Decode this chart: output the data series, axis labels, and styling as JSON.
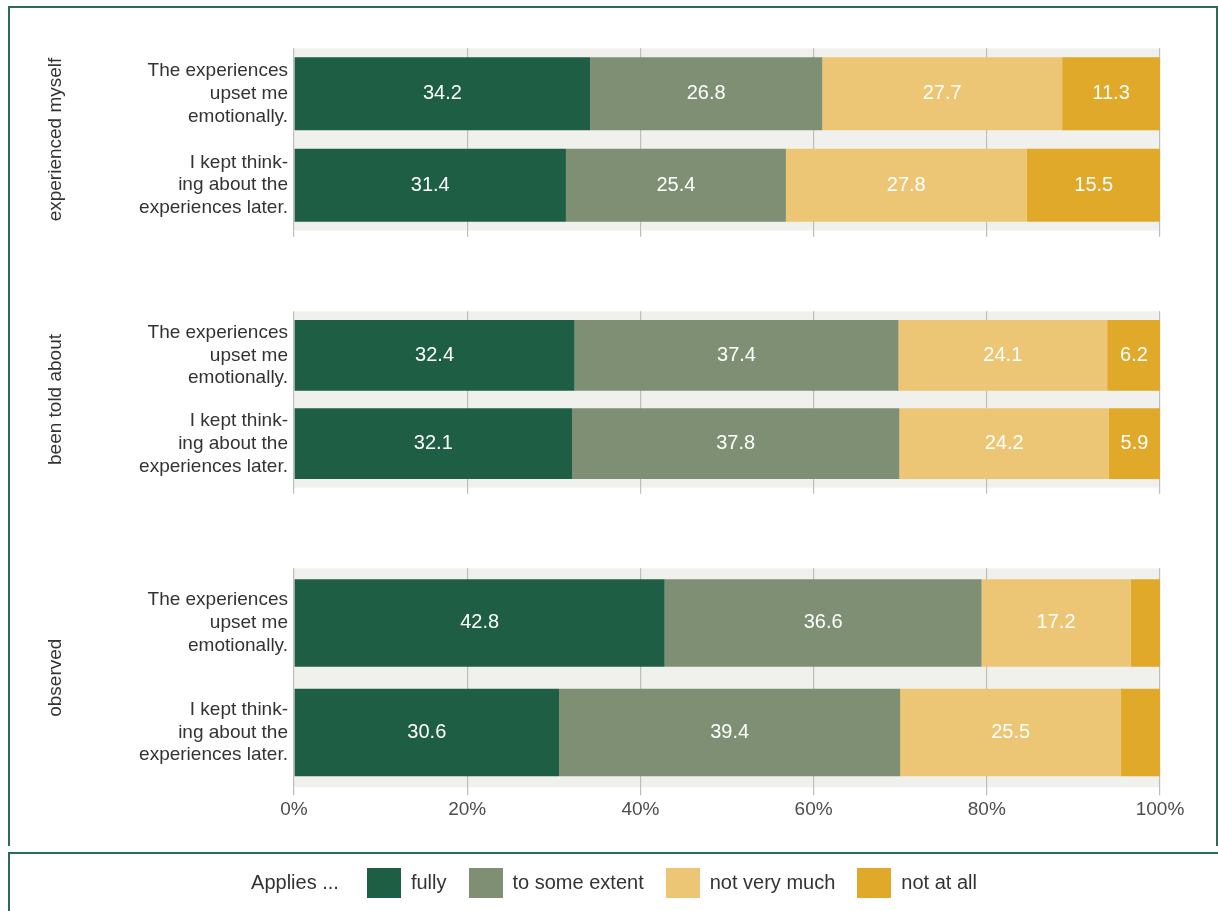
{
  "chart_data": [
    {
      "type": "bar",
      "orientation": "horizontal",
      "stacked": true,
      "ylabel": "experienced myself",
      "categories": [
        "The experiences\nupset me\nemotionally.",
        "I kept think-\ning about the\nexperiences later."
      ],
      "xlim": [
        0,
        100
      ],
      "xticks": [
        {
          "value": 0,
          "label": null
        },
        {
          "value": 20,
          "label": null
        },
        {
          "value": 40,
          "label": null
        },
        {
          "value": 60,
          "label": null
        },
        {
          "value": 80,
          "label": null
        },
        {
          "value": 100,
          "label": null
        }
      ],
      "grid": "x",
      "tick_labels": "y",
      "series": [
        {
          "color": "#1e5e45",
          "values": [
            34.2,
            31.4
          ],
          "value_labels": [
            "34.2",
            "31.4"
          ]
        },
        {
          "color": "#7f8f74",
          "values": [
            26.8,
            25.4
          ],
          "value_labels": [
            "26.8",
            "25.4"
          ]
        },
        {
          "color": "#ecc674",
          "values": [
            27.7,
            27.8
          ],
          "value_labels": [
            "27.7",
            "27.8"
          ]
        },
        {
          "color": "#e0a92a",
          "values": [
            11.3,
            15.5
          ],
          "value_labels": [
            "11.3",
            "15.5"
          ]
        }
      ]
    },
    {
      "type": "bar",
      "orientation": "horizontal",
      "stacked": true,
      "ylabel": "been told about",
      "categories": [
        "The experiences\nupset me\nemotionally.",
        "I kept think-\ning about the\nexperiences later."
      ],
      "xlim": [
        0,
        100
      ],
      "xticks": [
        {
          "value": 0,
          "label": null
        },
        {
          "value": 20,
          "label": null
        },
        {
          "value": 40,
          "label": null
        },
        {
          "value": 60,
          "label": null
        },
        {
          "value": 80,
          "label": null
        },
        {
          "value": 100,
          "label": null
        }
      ],
      "grid": "x",
      "tick_labels": "y",
      "series": [
        {
          "color": "#1e5e45",
          "values": [
            32.4,
            32.1
          ],
          "value_labels": [
            "32.4",
            "32.1"
          ]
        },
        {
          "color": "#7f8f74",
          "values": [
            37.4,
            37.8
          ],
          "value_labels": [
            "37.4",
            "37.8"
          ]
        },
        {
          "color": "#ecc674",
          "values": [
            24.1,
            24.2
          ],
          "value_labels": [
            "24.1",
            "24.2"
          ]
        },
        {
          "color": "#e0a92a",
          "values": [
            6.2,
            5.9
          ],
          "value_labels": [
            "6.2",
            "5.9"
          ]
        }
      ]
    },
    {
      "type": "bar",
      "orientation": "horizontal",
      "stacked": true,
      "ylabel": "observed",
      "legend_title": "Applies ...",
      "categories": [
        "The experiences\nupset me\nemotionally.",
        "I kept think-\ning about the\nexperiences later."
      ],
      "xlim": [
        0,
        100
      ],
      "xticks": [
        {
          "value": 0,
          "label": "0%"
        },
        {
          "value": 20,
          "label": "20%"
        },
        {
          "value": 40,
          "label": "40%"
        },
        {
          "value": 60,
          "label": "60%"
        },
        {
          "value": 80,
          "label": "80%"
        },
        {
          "value": 100,
          "label": "100%"
        }
      ],
      "grid": "x",
      "legend": "bottom",
      "series": [
        {
          "name": "fully",
          "color": "#1e5e45",
          "values": [
            42.8,
            30.6
          ],
          "value_labels": [
            "42.8",
            "30.6"
          ]
        },
        {
          "name": "to some extent",
          "color": "#7f8f74",
          "values": [
            36.6,
            39.4
          ],
          "value_labels": [
            "36.6",
            "39.4"
          ]
        },
        {
          "name": "not very much",
          "color": "#ecc674",
          "values": [
            17.2,
            25.5
          ],
          "value_labels": [
            "17.2",
            "25.5"
          ]
        },
        {
          "name": "not at all",
          "color": "#e0a92a",
          "values": [
            3.4,
            4.5
          ],
          "value_labels": [
            null,
            null
          ]
        }
      ]
    }
  ]
}
